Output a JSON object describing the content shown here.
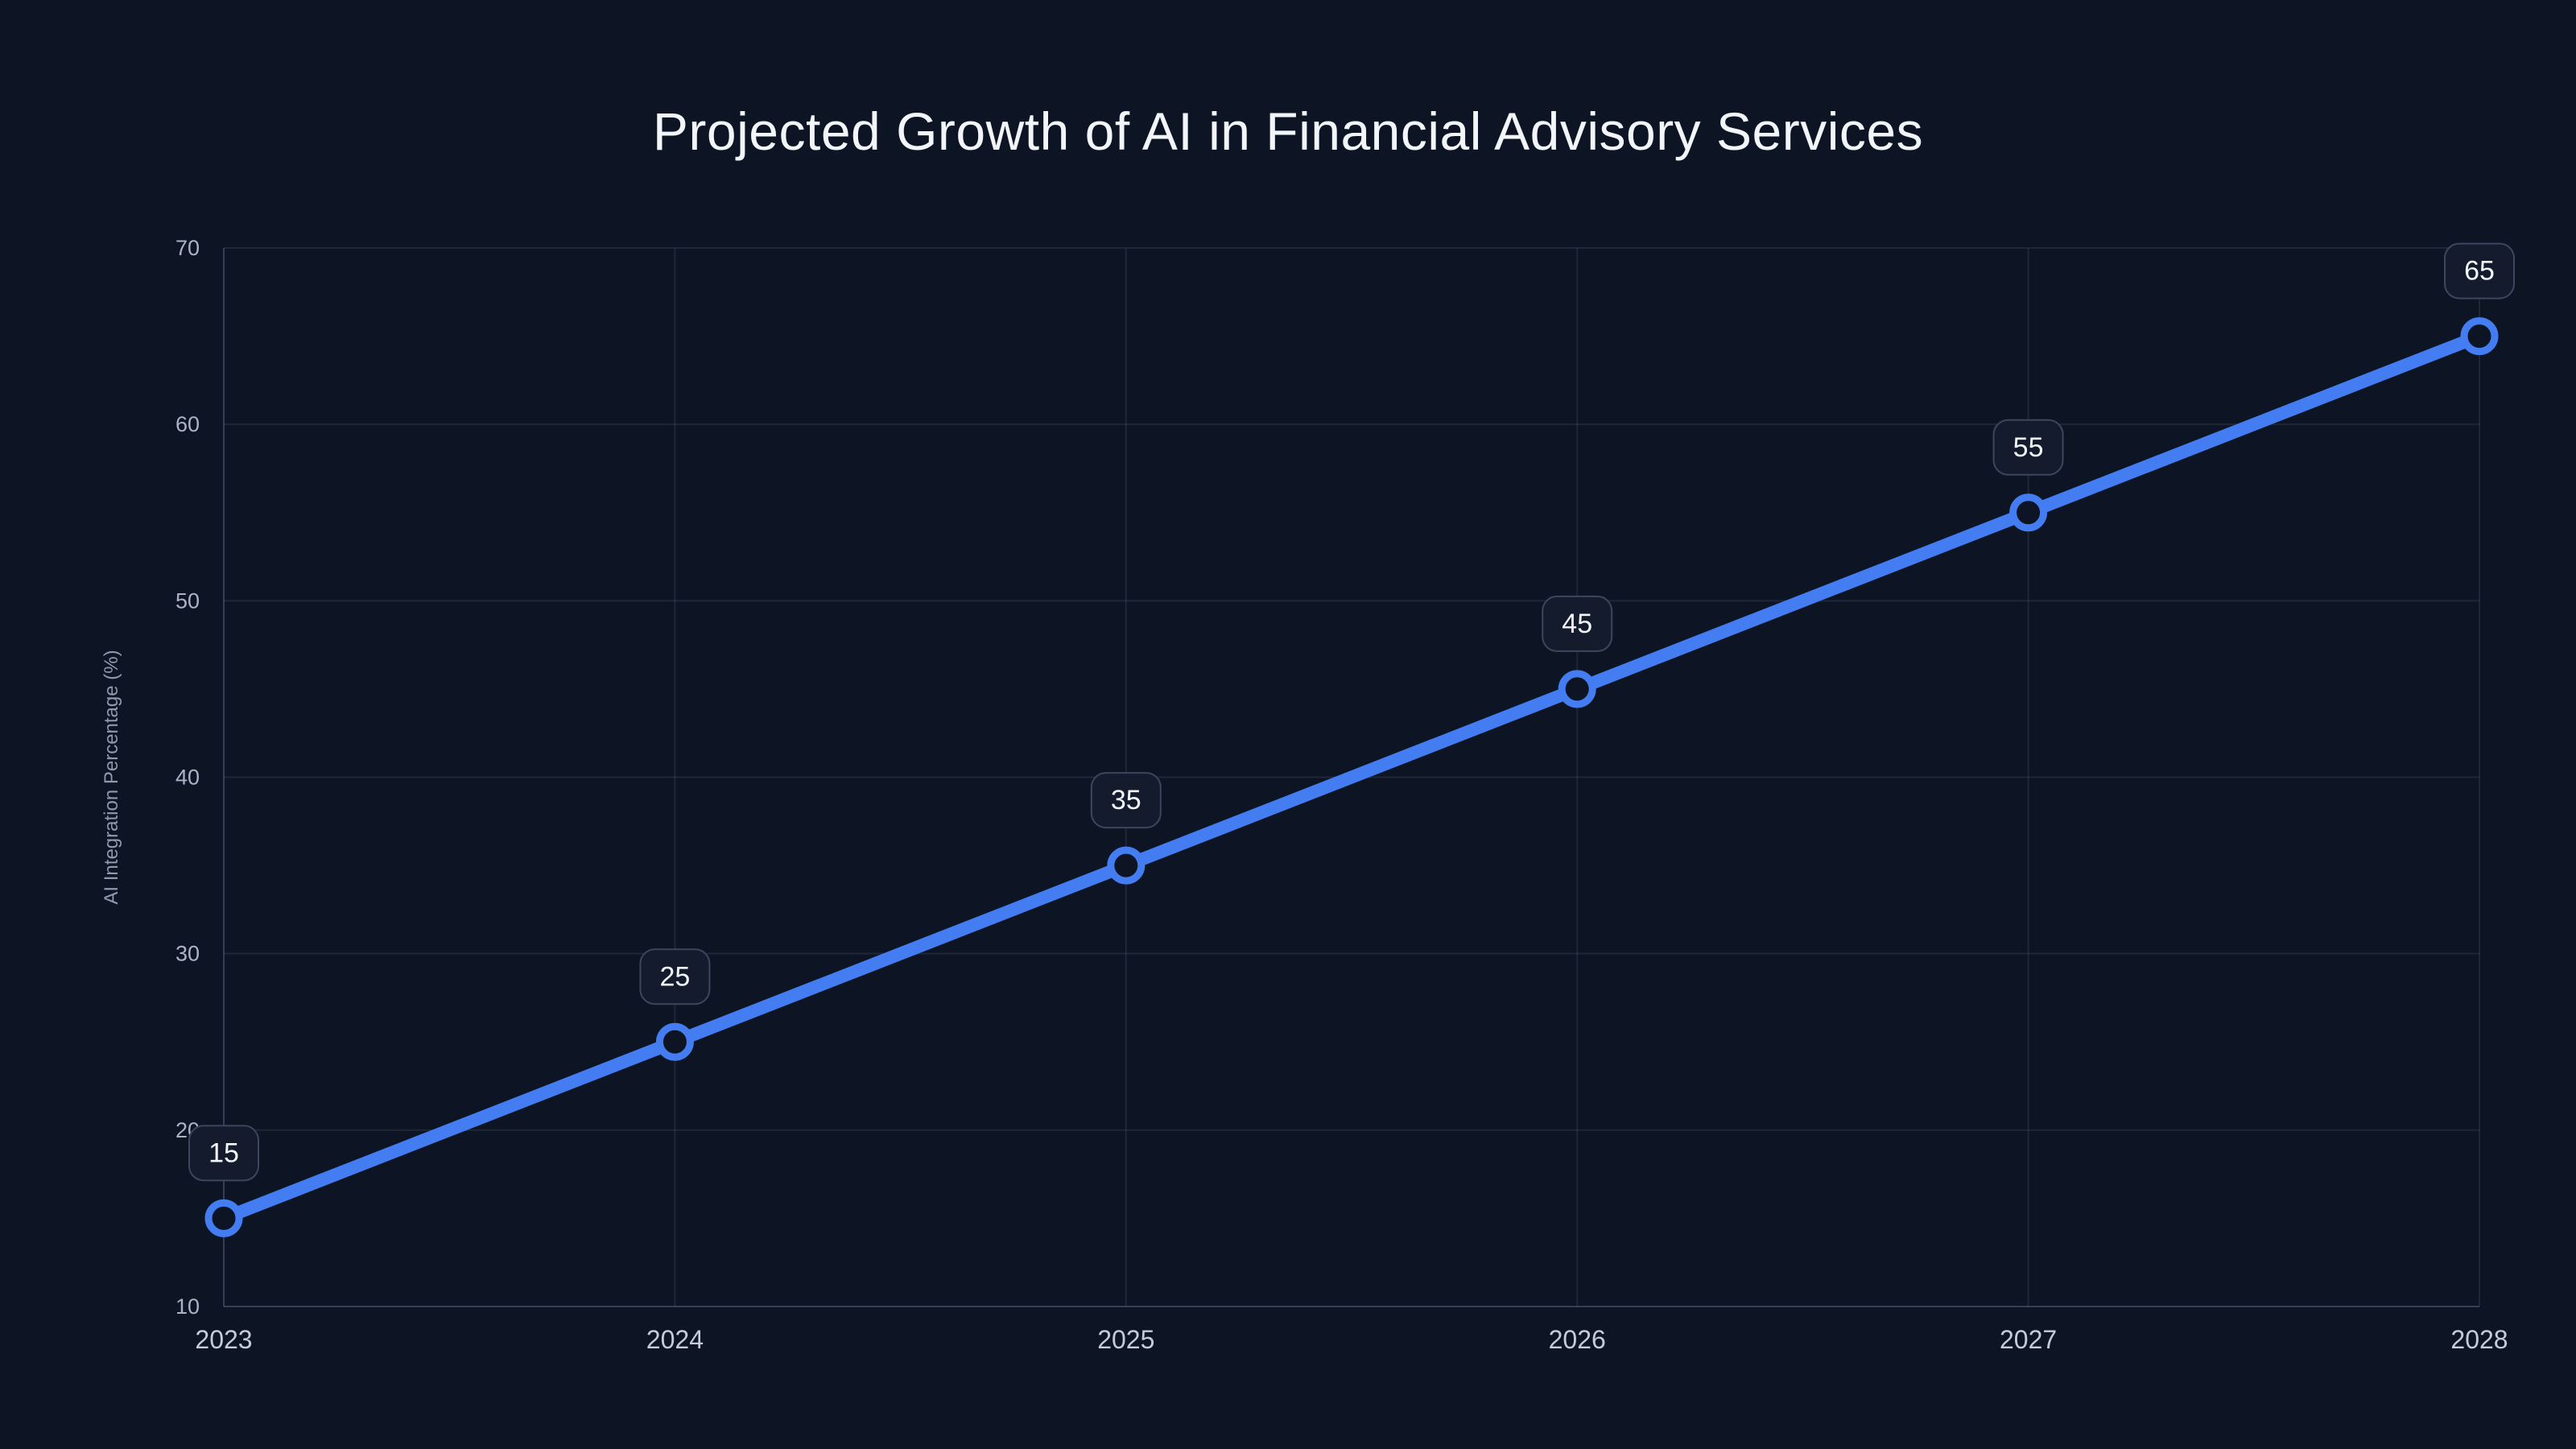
{
  "chart_data": {
    "type": "line",
    "title": "Projected Growth of AI in Financial Advisory Services",
    "x": [
      "2023",
      "2024",
      "2025",
      "2026",
      "2027",
      "2028"
    ],
    "series": [
      {
        "name": "AI Integration Percentage",
        "values": [
          15,
          25,
          35,
          45,
          55,
          65
        ]
      }
    ],
    "point_labels": [
      "15",
      "25",
      "35",
      "45",
      "55",
      "65"
    ],
    "xlabel": "",
    "ylabel": "AI Integration Percentage (%)",
    "ylim": [
      10,
      70
    ],
    "yticks": [
      10,
      20,
      30,
      40,
      50,
      60,
      70
    ],
    "grid": true,
    "legend_position": "none",
    "colors": {
      "background": "#0d1524",
      "line": "#447df2",
      "marker_ring": "#447df2",
      "marker_fill": "#0d1524",
      "badge_background": "#131b2d",
      "badge_border": "#3c465c",
      "badge_text": "#f2f5f9",
      "title_text": "#f2f5f9",
      "x_tick_text": "#c3ccda",
      "y_tick_text": "#a9b4c6",
      "axis_label_text": "#8e99ad",
      "gridline": "rgba(148,163,184,0.13)",
      "axis_line": "rgba(148,163,184,0.30)"
    }
  }
}
